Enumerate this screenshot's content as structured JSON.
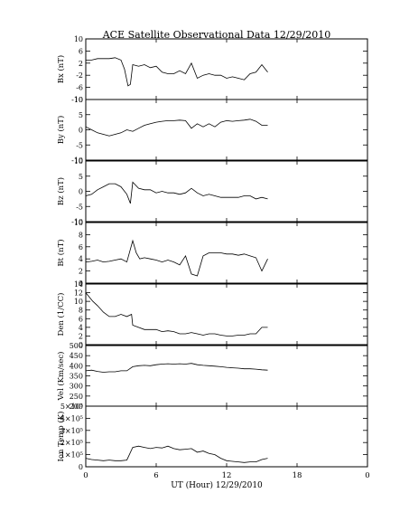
{
  "chart_data": {
    "type": "line",
    "title": "ACE Satellite Observational Data   12/29/2010",
    "xlabel": "UT (Hour)   12/29/2010",
    "x_ticks": [
      "0",
      "6",
      "12",
      "18",
      "0"
    ],
    "xlim": [
      0,
      24
    ],
    "grid": false,
    "panels": [
      {
        "ylabel": "Bx (nT)",
        "ylim": [
          -10,
          10
        ],
        "yticks": [
          "10",
          "6",
          "2",
          "-2",
          "-6",
          "-10"
        ],
        "ytick_values": [
          10,
          6,
          2,
          -2,
          -6,
          -10
        ],
        "x": [
          0,
          0.5,
          1,
          1.5,
          2,
          2.5,
          3,
          3.3,
          3.6,
          3.8,
          4,
          4.5,
          5,
          5.5,
          6,
          6.5,
          7,
          7.5,
          8,
          8.5,
          9,
          9.5,
          10,
          10.5,
          11,
          11.5,
          12,
          12.5,
          13,
          13.5,
          14,
          14.5,
          15,
          15.5
        ],
        "y": [
          3,
          3,
          3.5,
          3.5,
          3.5,
          3.8,
          3,
          0,
          -5.5,
          -5,
          1.5,
          1,
          1.5,
          0.5,
          1,
          -1,
          -1.5,
          -1.5,
          -0.5,
          -1.5,
          2,
          -3,
          -2,
          -1.5,
          -2,
          -2,
          -3,
          -2.5,
          -3,
          -3.5,
          -1.5,
          -1,
          1.5,
          -1
        ]
      },
      {
        "ylabel": "By (nT)",
        "ylim": [
          -10,
          10
        ],
        "yticks": [
          "10",
          "5",
          "0",
          "-5",
          "-10"
        ],
        "ytick_values": [
          10,
          5,
          0,
          -5,
          -10
        ],
        "x": [
          0,
          0.5,
          1,
          1.5,
          2,
          2.5,
          3,
          3.5,
          4,
          4.5,
          5,
          5.5,
          6,
          6.5,
          7,
          7.5,
          8,
          8.5,
          9,
          9.5,
          10,
          10.5,
          11,
          11.5,
          12,
          12.5,
          13,
          13.5,
          14,
          14.5,
          15,
          15.5
        ],
        "y": [
          1,
          0,
          -1,
          -1.5,
          -2,
          -1.5,
          -1,
          0,
          -0.5,
          0.5,
          1.5,
          2,
          2.5,
          2.8,
          3,
          3,
          3.2,
          3,
          0.5,
          2,
          1,
          2,
          1,
          2.5,
          3,
          2.8,
          3,
          3.2,
          3.5,
          2.8,
          1.5,
          1.5
        ]
      },
      {
        "ylabel": "Bz (nT)",
        "ylim": [
          -10,
          10
        ],
        "yticks": [
          "10",
          "5",
          "0",
          "-5",
          "-10"
        ],
        "ytick_values": [
          10,
          5,
          0,
          -5,
          -10
        ],
        "x": [
          0,
          0.5,
          1,
          1.5,
          2,
          2.5,
          3,
          3.5,
          3.8,
          4,
          4.5,
          5,
          5.5,
          6,
          6.5,
          7,
          7.5,
          8,
          8.5,
          9,
          9.5,
          10,
          10.5,
          11,
          11.5,
          12,
          12.5,
          13,
          13.5,
          14,
          14.5,
          15,
          15.5
        ],
        "y": [
          -1.5,
          -1,
          0.5,
          1.5,
          2.5,
          2.5,
          1.5,
          -1,
          -4,
          3,
          1,
          0.5,
          0.5,
          -0.5,
          0,
          -0.5,
          -0.5,
          -1,
          -0.5,
          1,
          -0.5,
          -1.5,
          -1,
          -1.5,
          -2,
          -2,
          -2,
          -2,
          -1.5,
          -1.5,
          -2.5,
          -2,
          -2.5
        ]
      },
      {
        "ylabel": "Bt (nT)",
        "ylim": [
          0,
          10
        ],
        "yticks": [
          "10",
          "8",
          "6",
          "4",
          "2",
          "0"
        ],
        "ytick_values": [
          10,
          8,
          6,
          4,
          2,
          0
        ],
        "x": [
          0,
          0.5,
          1,
          1.5,
          2,
          2.5,
          3,
          3.5,
          4,
          4.3,
          4.6,
          5,
          5.5,
          6,
          6.5,
          7,
          7.5,
          8,
          8.5,
          9,
          9.5,
          10,
          10.5,
          11,
          11.5,
          12,
          12.5,
          13,
          13.5,
          14,
          14.5,
          15,
          15.5
        ],
        "y": [
          3.5,
          3.6,
          3.8,
          3.5,
          3.6,
          3.8,
          4,
          3.5,
          7,
          5,
          4,
          4.2,
          4,
          3.8,
          3.5,
          3.8,
          3.5,
          3,
          4.5,
          1.5,
          1.2,
          4.5,
          5,
          5,
          5,
          4.8,
          4.8,
          4.6,
          4.8,
          4.5,
          4.2,
          2,
          4
        ]
      },
      {
        "ylabel": "Den (1/CC)",
        "ylim": [
          0,
          14
        ],
        "yticks": [
          "14",
          "12",
          "10",
          "8",
          "6",
          "4",
          "2",
          "0"
        ],
        "ytick_values": [
          14,
          12,
          10,
          8,
          6,
          4,
          2,
          0
        ],
        "x": [
          0,
          0.3,
          0.6,
          1,
          1.5,
          2,
          2.5,
          3,
          3.5,
          3.9,
          4,
          4.5,
          5,
          5.5,
          6,
          6.5,
          7,
          7.5,
          8,
          8.5,
          9,
          9.5,
          10,
          10.5,
          11,
          11.5,
          12,
          12.5,
          13,
          13.5,
          14,
          14.5,
          15,
          15.5
        ],
        "y": [
          12,
          11,
          10,
          9,
          7.5,
          6.5,
          6.5,
          7,
          6.5,
          7,
          4.5,
          4,
          3.5,
          3.5,
          3.5,
          3,
          3.2,
          3,
          2.5,
          2.5,
          2.8,
          2.5,
          2.2,
          2.5,
          2.5,
          2.2,
          2,
          2,
          2.2,
          2.2,
          2.5,
          2.5,
          4,
          4
        ]
      },
      {
        "ylabel": "Vel (Km/sec)",
        "ylim": [
          200,
          500
        ],
        "yticks": [
          "500",
          "450",
          "400",
          "350",
          "300",
          "250",
          "200"
        ],
        "ytick_values": [
          500,
          450,
          400,
          350,
          300,
          250,
          200
        ],
        "x": [
          0,
          0.5,
          1,
          1.5,
          2,
          2.5,
          3,
          3.5,
          4,
          4.5,
          5,
          5.5,
          6,
          6.5,
          7,
          7.5,
          8,
          8.5,
          9,
          9.5,
          10,
          10.5,
          11,
          11.5,
          12,
          12.5,
          13,
          13.5,
          14,
          14.5,
          15,
          15.5
        ],
        "y": [
          375,
          378,
          372,
          368,
          370,
          370,
          375,
          375,
          395,
          400,
          402,
          400,
          405,
          408,
          410,
          408,
          410,
          408,
          412,
          405,
          402,
          400,
          398,
          395,
          392,
          390,
          388,
          385,
          385,
          383,
          380,
          378
        ]
      },
      {
        "ylabel": "Ion Temp (K)",
        "ylim": [
          0,
          500000
        ],
        "yticks": [
          "5×10⁵",
          "4×10⁵",
          "3×10⁵",
          "2×10⁵",
          "1×10⁵",
          "0"
        ],
        "ytick_values": [
          500000,
          400000,
          300000,
          200000,
          100000,
          0
        ],
        "x": [
          0,
          0.5,
          1,
          1.5,
          2,
          2.5,
          3,
          3.5,
          4,
          4.5,
          5,
          5.5,
          6,
          6.5,
          7,
          7.5,
          8,
          8.5,
          9,
          9.5,
          10,
          10.5,
          11,
          11.5,
          12,
          12.5,
          13,
          13.5,
          14,
          14.5,
          15,
          15.5
        ],
        "y": [
          70000,
          60000,
          55000,
          50000,
          55000,
          50000,
          50000,
          55000,
          160000,
          170000,
          160000,
          150000,
          160000,
          155000,
          170000,
          150000,
          140000,
          145000,
          150000,
          120000,
          130000,
          110000,
          100000,
          70000,
          50000,
          45000,
          40000,
          35000,
          40000,
          40000,
          60000,
          70000
        ]
      }
    ]
  }
}
